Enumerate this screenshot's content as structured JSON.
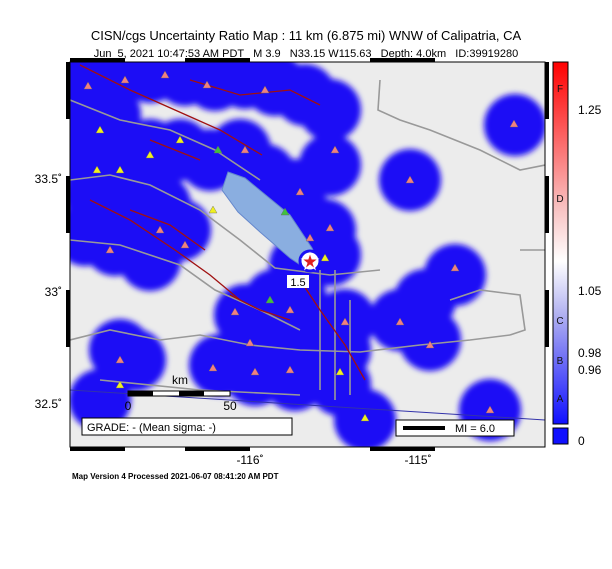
{
  "header": {
    "title": "CISN/cgs Uncertainty Ratio Map : 11 km (6.875 mi) WNW of Calipatria, CA",
    "subtitle": "Jun  5, 2021 10:47:53 AM PDT   M 3.9   N33.15 W115.63   Depth: 4.0km   ID:39919280"
  },
  "axes": {
    "lat_labels": [
      "33.5˚",
      "33˚",
      "32.5˚"
    ],
    "lon_labels": [
      "-116˚",
      "-115˚"
    ]
  },
  "scale": {
    "unit": "km",
    "start": "0",
    "end": "50"
  },
  "grade": "GRADE: - (Mean sigma: -)",
  "mi_legend": "MI = 6.0",
  "contour_label": "1.5",
  "colorbar": {
    "grades": [
      "F",
      "D",
      "C",
      "B",
      "A"
    ],
    "values": [
      "1.25",
      "1.05",
      "0.98",
      "0.96",
      "0"
    ]
  },
  "footer": "Map Version 4 Processed 2021-06-07 08:41:20 AM PDT"
}
